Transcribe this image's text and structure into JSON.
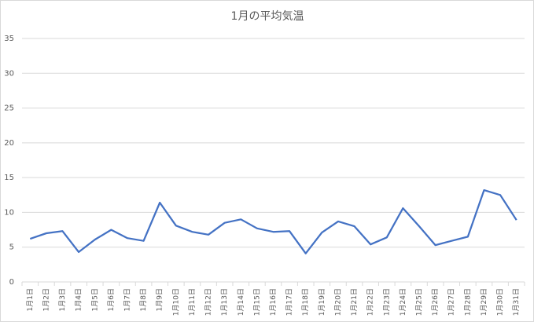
{
  "chart_data": {
    "type": "line",
    "title": "1月の平均気温",
    "categories": [
      "1月1日",
      "1月2日",
      "1月3日",
      "1月4日",
      "1月5日",
      "1月6日",
      "1月7日",
      "1月8日",
      "1月9日",
      "1月10日",
      "1月11日",
      "1月12日",
      "1月13日",
      "1月14日",
      "1月15日",
      "1月16日",
      "1月17日",
      "1月18日",
      "1月19日",
      "1月20日",
      "1月21日",
      "1月22日",
      "1月23日",
      "1月24日",
      "1月25日",
      "1月26日",
      "1月27日",
      "1月28日",
      "1月29日",
      "1月30日",
      "1月31日"
    ],
    "values": [
      6.2,
      7.0,
      7.3,
      4.3,
      6.1,
      7.5,
      6.3,
      5.9,
      11.4,
      8.1,
      7.2,
      6.8,
      8.5,
      9.0,
      7.7,
      7.2,
      7.3,
      4.1,
      7.1,
      8.7,
      8.0,
      5.4,
      6.4,
      10.6,
      8.0,
      5.3,
      5.9,
      6.5,
      13.2,
      12.5,
      8.9
    ],
    "color": "#4472c4",
    "ylim": [
      0,
      35
    ],
    "yticks": [
      0,
      5,
      10,
      15,
      20,
      25,
      30,
      35
    ],
    "grid": true
  }
}
